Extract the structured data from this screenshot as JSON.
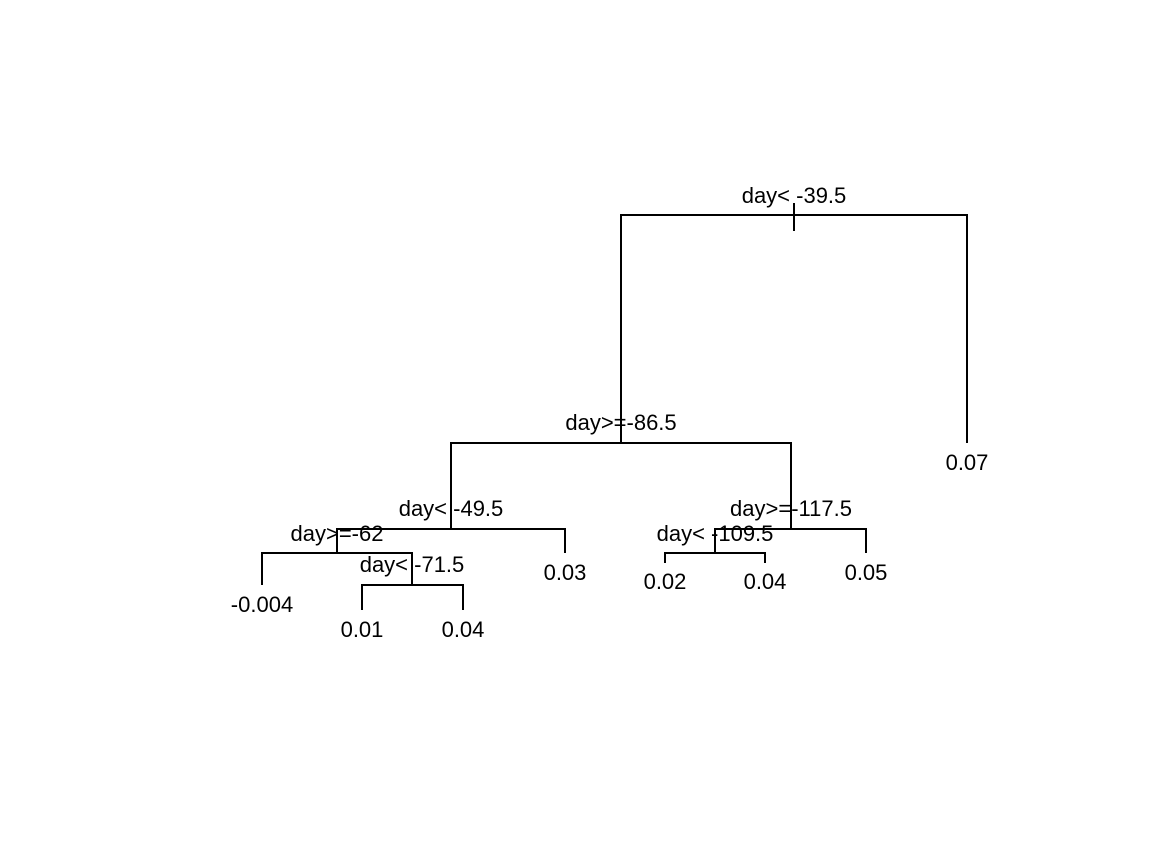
{
  "tree": {
    "splits": {
      "root": "day< -39.5",
      "left": "day>=-86.5",
      "left_left": "day< -49.5",
      "left_left_left": "day>=-62",
      "left_left_left_right": "day< -71.5",
      "left_right": "day>=-117.5",
      "left_right_left": "day< -109.5"
    },
    "leaves": {
      "root_right": "0.07",
      "left_left_left_left": "-0.004",
      "left_left_left_right_left": "0.01",
      "left_left_left_right_right": "0.04",
      "left_left_right": "0.03",
      "left_right_left_left": "0.02",
      "left_right_left_right": "0.04",
      "left_right_right": "0.05"
    },
    "colors": {
      "line": "#000000",
      "text": "#000000",
      "background": "#ffffff"
    }
  }
}
